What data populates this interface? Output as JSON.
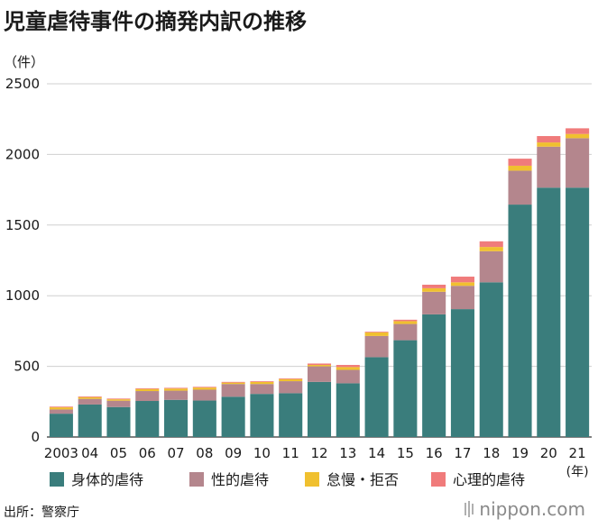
{
  "title": "児童虐待事件の摘発内訳の推移",
  "unit_label": "（件）",
  "source": "出所：警察庁",
  "brand": "nippon.com",
  "chart_data": {
    "type": "bar",
    "stacked": true,
    "categories": [
      "2003",
      "04",
      "05",
      "06",
      "07",
      "08",
      "09",
      "10",
      "11",
      "12",
      "13",
      "14",
      "15",
      "16",
      "17",
      "18",
      "19",
      "20",
      "21"
    ],
    "x_unit_label": "(年)",
    "ylim": [
      0,
      2500
    ],
    "yticks": [
      0,
      500,
      1000,
      1500,
      2000,
      2500
    ],
    "grid": true,
    "legend_position": "bottom",
    "series": [
      {
        "name": "身体的虐待",
        "color": "#3a7d7c",
        "values": [
          165,
          230,
          212,
          255,
          263,
          258,
          285,
          305,
          310,
          390,
          380,
          565,
          685,
          868,
          905,
          1095,
          1645,
          1765,
          1765
        ]
      },
      {
        "name": "性的虐待",
        "color": "#b4868d",
        "values": [
          30,
          40,
          45,
          70,
          65,
          77,
          90,
          70,
          85,
          110,
          95,
          150,
          115,
          160,
          165,
          220,
          240,
          290,
          350
        ]
      },
      {
        "name": "怠慢・拒否",
        "color": "#f0c02f",
        "values": [
          15,
          12,
          10,
          15,
          15,
          15,
          10,
          15,
          15,
          10,
          20,
          25,
          20,
          25,
          25,
          30,
          35,
          30,
          30
        ]
      },
      {
        "name": "心理的虐待",
        "color": "#f07b7b",
        "values": [
          5,
          5,
          5,
          5,
          5,
          5,
          5,
          5,
          5,
          10,
          15,
          5,
          10,
          25,
          40,
          40,
          50,
          45,
          40
        ]
      }
    ]
  }
}
